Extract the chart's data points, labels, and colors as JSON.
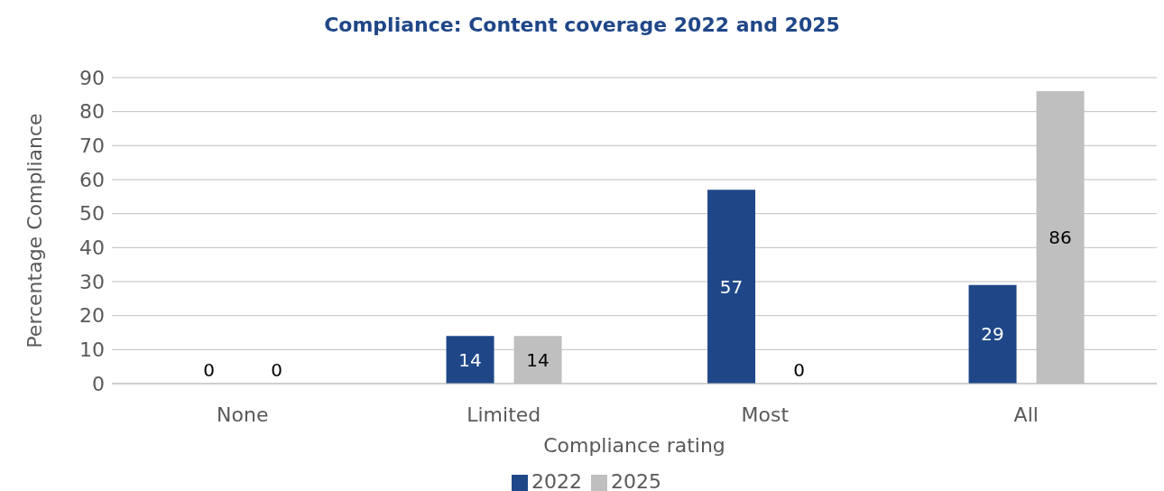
{
  "chart_data": {
    "type": "bar",
    "title": "Compliance: Content coverage 2022 and 2025",
    "xlabel": "Compliance rating",
    "ylabel": "Percentage  Compliance",
    "categories": [
      "None",
      "Limited",
      "Most",
      "All"
    ],
    "series": [
      {
        "name": "2022",
        "color": "#1f4788",
        "values": [
          0,
          14,
          57,
          29
        ]
      },
      {
        "name": "2025",
        "color": "#bfbfbf",
        "values": [
          0,
          14,
          0,
          86
        ]
      }
    ],
    "ylim": [
      0,
      90
    ],
    "yticks": [
      0,
      10,
      20,
      30,
      40,
      50,
      60,
      70,
      80,
      90
    ],
    "grid": "y",
    "legend": "bottom",
    "data_labels": true
  }
}
